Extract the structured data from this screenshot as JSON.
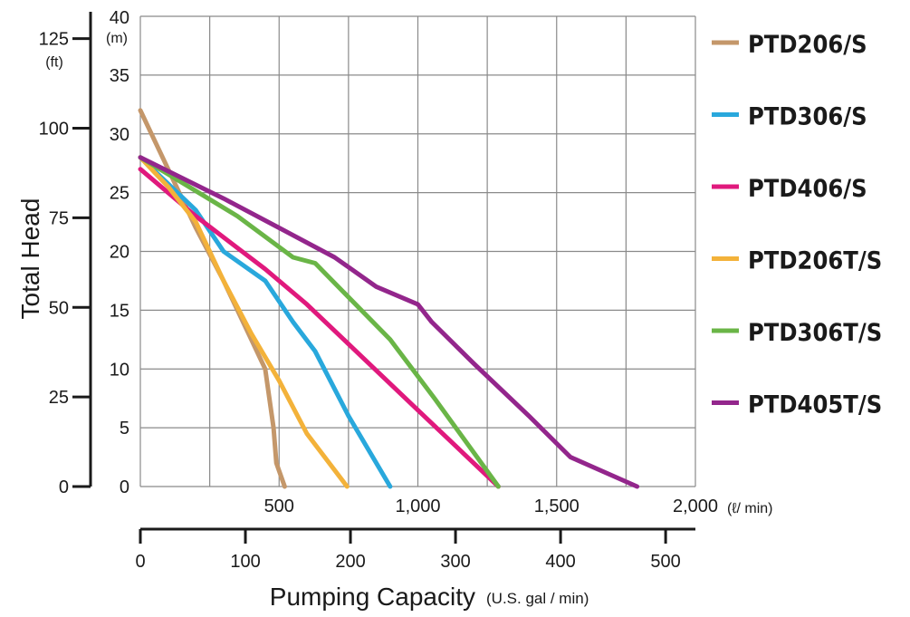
{
  "chart_data": {
    "type": "line",
    "x_primary": {
      "unit": "(ℓ/ min)",
      "ticks": [
        500,
        1000,
        1500,
        2000
      ],
      "tick_labels": [
        "500",
        "1,000",
        "1,500",
        "2,000"
      ],
      "range": [
        0,
        2000
      ]
    },
    "x_secondary": {
      "title": "Pumping Capacity",
      "unit": "(U.S. gal / min)",
      "ticks": [
        0,
        100,
        200,
        300,
        400,
        500
      ],
      "tick_labels": [
        "0",
        "100",
        "200",
        "300",
        "400",
        "500"
      ]
    },
    "y_primary": {
      "unit": "(m)",
      "ticks": [
        0,
        5,
        10,
        15,
        20,
        25,
        30,
        35,
        40
      ],
      "tick_labels": [
        "0",
        "5",
        "10",
        "15",
        "20",
        "25",
        "30",
        "35",
        "40"
      ],
      "range": [
        0,
        40
      ]
    },
    "y_secondary": {
      "title": "Total Head",
      "unit": "(ft)",
      "ticks": [
        0,
        25,
        50,
        75,
        100,
        125
      ],
      "tick_labels": [
        "0",
        "25",
        "50",
        "75",
        "100",
        "125"
      ]
    },
    "grid": true,
    "legend_position": "right",
    "series": [
      {
        "name": "PTD206/S",
        "color": "#c4976a",
        "points": [
          [
            0,
            32
          ],
          [
            50,
            29.5
          ],
          [
            100,
            27
          ],
          [
            200,
            22
          ],
          [
            300,
            17.5
          ],
          [
            400,
            12.5
          ],
          [
            450,
            10
          ],
          [
            480,
            5
          ],
          [
            490,
            2
          ],
          [
            520,
            0
          ]
        ]
      },
      {
        "name": "PTD306/S",
        "color": "#29a8dc",
        "points": [
          [
            0,
            28
          ],
          [
            200,
            23.5
          ],
          [
            300,
            20
          ],
          [
            450,
            17.5
          ],
          [
            550,
            14
          ],
          [
            630,
            11.5
          ],
          [
            750,
            6
          ],
          [
            900,
            0
          ]
        ]
      },
      {
        "name": "PTD406/S",
        "color": "#e0197d",
        "points": [
          [
            0,
            27
          ],
          [
            200,
            23
          ],
          [
            450,
            18.5
          ],
          [
            600,
            15.5
          ],
          [
            800,
            11
          ],
          [
            1000,
            6.5
          ],
          [
            1290,
            0
          ]
        ]
      },
      {
        "name": "PTD206T/S",
        "color": "#f3b23a",
        "points": [
          [
            0,
            28
          ],
          [
            100,
            25.5
          ],
          [
            200,
            22.5
          ],
          [
            300,
            17.5
          ],
          [
            400,
            13
          ],
          [
            500,
            9
          ],
          [
            600,
            4.5
          ],
          [
            745,
            0
          ]
        ]
      },
      {
        "name": "PTD306T/S",
        "color": "#6ab547",
        "points": [
          [
            0,
            28
          ],
          [
            350,
            23
          ],
          [
            550,
            19.5
          ],
          [
            630,
            19
          ],
          [
            900,
            12.5
          ],
          [
            1060,
            7.5
          ],
          [
            1290,
            0
          ]
        ]
      },
      {
        "name": "PTD405T/S",
        "color": "#93268c",
        "points": [
          [
            0,
            28
          ],
          [
            300,
            24.5
          ],
          [
            500,
            22
          ],
          [
            700,
            19.5
          ],
          [
            850,
            17
          ],
          [
            1000,
            15.5
          ],
          [
            1050,
            14
          ],
          [
            1200,
            10.5
          ],
          [
            1400,
            6
          ],
          [
            1550,
            2.5
          ],
          [
            1790,
            0
          ]
        ]
      }
    ]
  }
}
